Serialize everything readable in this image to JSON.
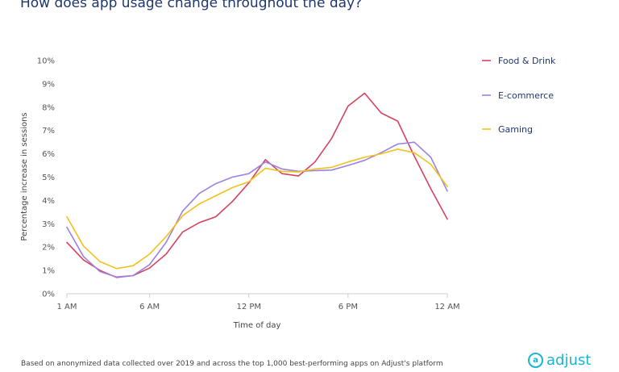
{
  "title": "How does app usage change throughout the day?",
  "footnote": "Based on anonymized data collected over 2019 and across the top 1,000 best-performing apps on Adjust's platform",
  "brand": {
    "name": "adjust",
    "icon": "adjust-logo-icon",
    "color": "#1bb3d4"
  },
  "chart_data": {
    "type": "line",
    "title": "How does app usage change throughout the day?",
    "xlabel": "Time of day",
    "ylabel": "Percentage increase in sessions",
    "x": [
      1,
      2,
      3,
      4,
      5,
      6,
      7,
      8,
      9,
      10,
      11,
      12,
      13,
      14,
      15,
      16,
      17,
      18,
      19,
      20,
      21,
      22,
      23,
      24
    ],
    "x_ticks": [
      {
        "x": 1,
        "label": "1 AM"
      },
      {
        "x": 6,
        "label": "6 AM"
      },
      {
        "x": 12,
        "label": "12 PM"
      },
      {
        "x": 18,
        "label": "6 PM"
      },
      {
        "x": 24,
        "label": "12 AM"
      }
    ],
    "y_ticks": [
      {
        "y": 0,
        "label": "0%"
      },
      {
        "y": 1,
        "label": "1%"
      },
      {
        "y": 2,
        "label": "2%"
      },
      {
        "y": 3,
        "label": "3%"
      },
      {
        "y": 4,
        "label": "4%"
      },
      {
        "y": 5,
        "label": "5%"
      },
      {
        "y": 6,
        "label": "6%"
      },
      {
        "y": 7,
        "label": "7%"
      },
      {
        "y": 8,
        "label": "8%"
      },
      {
        "y": 9,
        "label": "9%"
      },
      {
        "y": 10,
        "label": "10%"
      }
    ],
    "xlim": [
      1,
      24
    ],
    "ylim": [
      0,
      10
    ],
    "grid": false,
    "legend_position": "right",
    "series": [
      {
        "name": "Food & Drink",
        "color": "#d6435f",
        "values": [
          2.2,
          1.45,
          1.0,
          0.7,
          0.78,
          1.1,
          1.7,
          2.65,
          3.05,
          3.3,
          3.95,
          4.75,
          5.75,
          5.15,
          5.05,
          5.65,
          6.65,
          8.05,
          8.6,
          7.75,
          7.4,
          5.9,
          4.5,
          3.2
        ]
      },
      {
        "name": "E-commerce",
        "color": "#9b82e0",
        "values": [
          2.85,
          1.6,
          0.95,
          0.72,
          0.78,
          1.25,
          2.2,
          3.55,
          4.3,
          4.72,
          5.0,
          5.15,
          5.65,
          5.35,
          5.25,
          5.28,
          5.3,
          5.5,
          5.72,
          6.05,
          6.42,
          6.5,
          5.85,
          4.4
        ]
      },
      {
        "name": "Gaming",
        "color": "#f2c11b",
        "values": [
          3.3,
          2.05,
          1.38,
          1.08,
          1.2,
          1.7,
          2.45,
          3.35,
          3.85,
          4.2,
          4.55,
          4.8,
          5.38,
          5.25,
          5.22,
          5.35,
          5.42,
          5.65,
          5.85,
          6.0,
          6.2,
          6.05,
          5.55,
          4.6
        ]
      }
    ]
  }
}
